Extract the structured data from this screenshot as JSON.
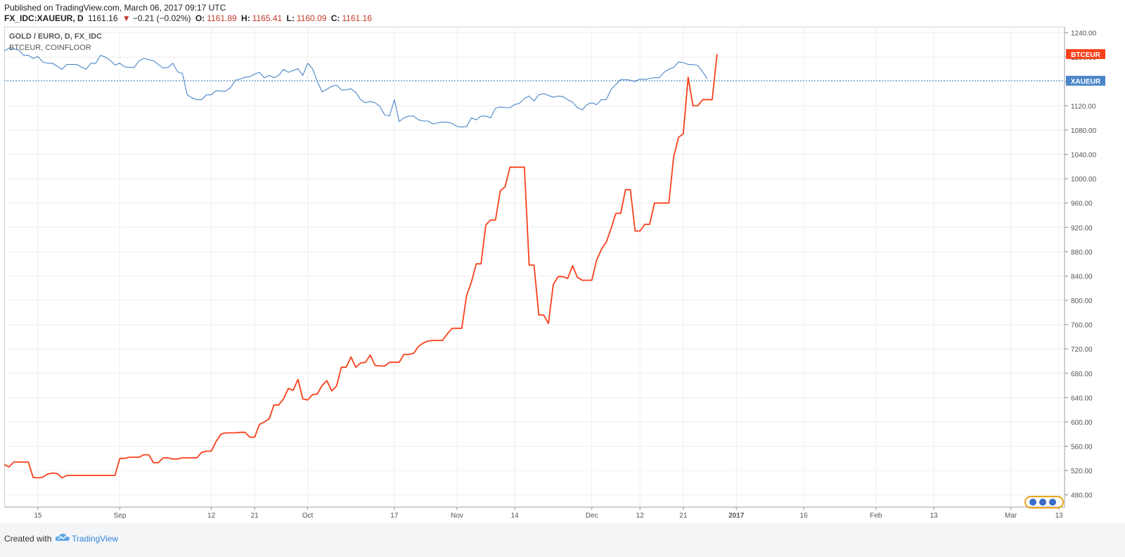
{
  "header": {
    "published": "Published on TradingView.com, March 06, 2017 09:17 UTC",
    "symbol": "FX_IDC:XAUEUR, D",
    "last": "1161.16",
    "change": "−0.21 (−0.02%)",
    "o_label": "O:",
    "o_value": "1161.89",
    "h_label": "H:",
    "h_value": "1165.41",
    "l_label": "L:",
    "l_value": "1160.09",
    "c_label": "C:",
    "c_value": "1161.16"
  },
  "legend": {
    "main": "GOLD / EURO, D, FX_IDC",
    "compare": "BTCEUR, COINFLOOR"
  },
  "footer": {
    "created_with": "Created with",
    "brand": "TradingView"
  },
  "colors": {
    "xaueur": "#4a86c8",
    "btceur": "#f7401b",
    "grid": "#eeeeee",
    "axis": "#555555"
  },
  "chart_data": {
    "type": "line",
    "ylim": [
      460,
      1250
    ],
    "yticks": [
      480,
      520,
      560,
      600,
      640,
      680,
      720,
      760,
      800,
      840,
      880,
      920,
      960,
      1000,
      1040,
      1080,
      1120,
      1160,
      1200,
      1240
    ],
    "x_tick_labels": [
      {
        "label": "15",
        "x": 7
      },
      {
        "label": "Sep",
        "x": 24
      },
      {
        "label": "12",
        "x": 43
      },
      {
        "label": "21",
        "x": 52
      },
      {
        "label": "Oct",
        "x": 63
      },
      {
        "label": "17",
        "x": 81
      },
      {
        "label": "Nov",
        "x": 94
      },
      {
        "label": "14",
        "x": 106
      },
      {
        "label": "Dec",
        "x": 122
      },
      {
        "label": "12",
        "x": 132
      },
      {
        "label": "21",
        "x": 141
      },
      {
        "label": "2017",
        "x": 152
      },
      {
        "label": "16",
        "x": 166
      },
      {
        "label": "Feb",
        "x": 181
      },
      {
        "label": "13",
        "x": 193
      },
      {
        "label": "Mar",
        "x": 209
      },
      {
        "label": "13",
        "x": 219
      }
    ],
    "series": [
      {
        "name": "XAUEUR",
        "color": "#4a86c8",
        "last": 1161.16,
        "points": [
          [
            0,
            1210
          ],
          [
            1,
            1215
          ],
          [
            3,
            1212
          ],
          [
            4,
            1203
          ],
          [
            5,
            1203
          ],
          [
            6,
            1198
          ],
          [
            7,
            1201
          ],
          [
            8,
            1192
          ],
          [
            9,
            1190
          ],
          [
            10,
            1190
          ],
          [
            12,
            1180
          ],
          [
            13,
            1188
          ],
          [
            14,
            1188
          ],
          [
            15,
            1188
          ],
          [
            16,
            1184
          ],
          [
            17,
            1180
          ],
          [
            18,
            1190
          ],
          [
            19,
            1190
          ],
          [
            20,
            1203
          ],
          [
            21,
            1200
          ],
          [
            22,
            1195
          ],
          [
            23,
            1187
          ],
          [
            24,
            1190
          ],
          [
            25,
            1184
          ],
          [
            26,
            1183
          ],
          [
            27,
            1183
          ],
          [
            28,
            1194
          ],
          [
            29,
            1198
          ],
          [
            30,
            1196
          ],
          [
            31,
            1194
          ],
          [
            32,
            1188
          ],
          [
            33,
            1182
          ],
          [
            34,
            1183
          ],
          [
            35,
            1190
          ],
          [
            36,
            1176
          ],
          [
            37,
            1173
          ],
          [
            38,
            1138
          ],
          [
            39,
            1133
          ],
          [
            40,
            1130
          ],
          [
            41,
            1130
          ],
          [
            42,
            1138
          ],
          [
            43,
            1138
          ],
          [
            44,
            1145
          ],
          [
            45,
            1144
          ],
          [
            46,
            1144
          ],
          [
            47,
            1150
          ],
          [
            48,
            1162
          ],
          [
            49,
            1164
          ],
          [
            50,
            1167
          ],
          [
            51,
            1168
          ],
          [
            52,
            1172
          ],
          [
            53,
            1175
          ],
          [
            54,
            1166
          ],
          [
            55,
            1170
          ],
          [
            56,
            1166
          ],
          [
            57,
            1170
          ],
          [
            58,
            1180
          ],
          [
            59,
            1175
          ],
          [
            60,
            1178
          ],
          [
            61,
            1181
          ],
          [
            62,
            1170
          ],
          [
            63,
            1190
          ],
          [
            64,
            1181
          ],
          [
            65,
            1160
          ],
          [
            66,
            1143
          ],
          [
            67,
            1147
          ],
          [
            68,
            1152
          ],
          [
            69,
            1154
          ],
          [
            70,
            1146
          ],
          [
            71,
            1146
          ],
          [
            72,
            1148
          ],
          [
            73,
            1142
          ],
          [
            74,
            1130
          ],
          [
            75,
            1125
          ],
          [
            76,
            1127
          ],
          [
            77,
            1125
          ],
          [
            78,
            1119
          ],
          [
            79,
            1105
          ],
          [
            80,
            1103
          ],
          [
            81,
            1130
          ],
          [
            82,
            1094
          ],
          [
            83,
            1100
          ],
          [
            84,
            1103
          ],
          [
            85,
            1103
          ],
          [
            86,
            1097
          ],
          [
            87,
            1095
          ],
          [
            88,
            1095
          ],
          [
            89,
            1090
          ],
          [
            90,
            1092
          ],
          [
            91,
            1093
          ],
          [
            92,
            1093
          ],
          [
            93,
            1091
          ],
          [
            94,
            1086
          ],
          [
            95,
            1085
          ],
          [
            96,
            1086
          ],
          [
            97,
            1100
          ],
          [
            98,
            1097
          ],
          [
            99,
            1103
          ],
          [
            100,
            1103
          ],
          [
            101,
            1100
          ],
          [
            102,
            1116
          ],
          [
            103,
            1118
          ],
          [
            104,
            1117
          ],
          [
            105,
            1117
          ],
          [
            106,
            1122
          ],
          [
            107,
            1124
          ],
          [
            108,
            1132
          ],
          [
            109,
            1136
          ],
          [
            110,
            1128
          ],
          [
            111,
            1138
          ],
          [
            112,
            1140
          ],
          [
            113,
            1137
          ],
          [
            114,
            1134
          ],
          [
            115,
            1136
          ],
          [
            116,
            1135
          ],
          [
            117,
            1130
          ],
          [
            118,
            1126
          ],
          [
            119,
            1117
          ],
          [
            120,
            1113
          ],
          [
            121,
            1122
          ],
          [
            122,
            1125
          ],
          [
            123,
            1122
          ],
          [
            124,
            1130
          ],
          [
            125,
            1130
          ],
          [
            126,
            1147
          ],
          [
            127,
            1155
          ],
          [
            128,
            1163
          ],
          [
            129,
            1163
          ],
          [
            130,
            1162
          ],
          [
            131,
            1160
          ],
          [
            132,
            1164
          ],
          [
            133,
            1163
          ],
          [
            134,
            1165
          ],
          [
            135,
            1166
          ],
          [
            136,
            1166
          ],
          [
            137,
            1175
          ],
          [
            138,
            1180
          ],
          [
            139,
            1183
          ],
          [
            140,
            1192
          ],
          [
            141,
            1191
          ],
          [
            142,
            1188
          ],
          [
            143,
            1188
          ],
          [
            144,
            1186
          ],
          [
            145,
            1176
          ],
          [
            146,
            1164
          ]
        ]
      },
      {
        "name": "BTCEUR",
        "color": "#f7401b",
        "last": 1205,
        "points": [
          [
            0,
            530
          ],
          [
            1,
            526
          ],
          [
            2,
            534
          ],
          [
            3,
            534
          ],
          [
            4,
            534
          ],
          [
            5,
            534
          ],
          [
            6,
            509
          ],
          [
            7,
            508
          ],
          [
            8,
            509
          ],
          [
            9,
            514
          ],
          [
            10,
            516
          ],
          [
            11,
            515
          ],
          [
            12,
            508
          ],
          [
            13,
            512
          ],
          [
            14,
            512
          ],
          [
            15,
            512
          ],
          [
            16,
            512
          ],
          [
            17,
            512
          ],
          [
            18,
            512
          ],
          [
            19,
            512
          ],
          [
            20,
            512
          ],
          [
            21,
            512
          ],
          [
            22,
            512
          ],
          [
            23,
            512
          ],
          [
            24,
            540
          ],
          [
            25,
            540
          ],
          [
            26,
            542
          ],
          [
            27,
            542
          ],
          [
            28,
            542
          ],
          [
            29,
            546
          ],
          [
            30,
            546
          ],
          [
            31,
            533
          ],
          [
            32,
            533
          ],
          [
            33,
            541
          ],
          [
            34,
            541
          ],
          [
            35,
            539
          ],
          [
            36,
            539
          ],
          [
            37,
            541
          ],
          [
            38,
            541
          ],
          [
            39,
            541
          ],
          [
            40,
            541
          ],
          [
            41,
            550
          ],
          [
            42,
            552
          ],
          [
            43,
            552
          ],
          [
            44,
            568
          ],
          [
            45,
            580
          ],
          [
            46,
            582
          ],
          [
            47,
            582
          ],
          [
            48,
            582
          ],
          [
            49,
            583
          ],
          [
            50,
            583
          ],
          [
            51,
            575
          ],
          [
            52,
            575
          ],
          [
            53,
            596
          ],
          [
            54,
            600
          ],
          [
            55,
            605
          ],
          [
            56,
            628
          ],
          [
            57,
            628
          ],
          [
            58,
            638
          ],
          [
            59,
            655
          ],
          [
            60,
            652
          ],
          [
            61,
            670
          ],
          [
            62,
            638
          ],
          [
            63,
            636
          ],
          [
            64,
            645
          ],
          [
            65,
            646
          ],
          [
            66,
            660
          ],
          [
            67,
            668
          ],
          [
            68,
            651
          ],
          [
            69,
            659
          ],
          [
            70,
            690
          ],
          [
            71,
            690
          ],
          [
            72,
            707
          ],
          [
            73,
            690
          ],
          [
            74,
            697
          ],
          [
            75,
            698
          ],
          [
            76,
            710
          ],
          [
            77,
            693
          ],
          [
            78,
            692
          ],
          [
            79,
            692
          ],
          [
            80,
            698
          ],
          [
            81,
            698
          ],
          [
            82,
            698
          ],
          [
            83,
            711
          ],
          [
            84,
            711
          ],
          [
            85,
            713
          ],
          [
            86,
            724
          ],
          [
            87,
            730
          ],
          [
            88,
            733
          ],
          [
            89,
            734
          ],
          [
            90,
            734
          ],
          [
            91,
            734
          ],
          [
            92,
            745
          ],
          [
            93,
            754
          ],
          [
            94,
            754
          ],
          [
            95,
            754
          ],
          [
            96,
            808
          ],
          [
            97,
            830
          ],
          [
            98,
            860
          ],
          [
            99,
            860
          ],
          [
            100,
            924
          ],
          [
            101,
            932
          ],
          [
            102,
            932
          ],
          [
            103,
            980
          ],
          [
            104,
            987
          ],
          [
            105,
            1019
          ],
          [
            106,
            1019
          ],
          [
            107,
            1019
          ],
          [
            108,
            1019
          ],
          [
            109,
            858
          ],
          [
            110,
            858
          ],
          [
            111,
            776
          ],
          [
            112,
            776
          ],
          [
            113,
            762
          ],
          [
            114,
            826
          ],
          [
            115,
            839
          ],
          [
            116,
            839
          ],
          [
            117,
            836
          ],
          [
            118,
            857
          ],
          [
            119,
            838
          ],
          [
            120,
            833
          ],
          [
            121,
            833
          ],
          [
            122,
            833
          ],
          [
            123,
            866
          ],
          [
            124,
            884
          ],
          [
            125,
            896
          ],
          [
            126,
            918
          ],
          [
            127,
            943
          ],
          [
            128,
            943
          ],
          [
            129,
            982
          ],
          [
            130,
            982
          ],
          [
            131,
            914
          ],
          [
            132,
            914
          ],
          [
            133,
            925
          ],
          [
            134,
            925
          ],
          [
            135,
            960
          ],
          [
            136,
            960
          ],
          [
            137,
            960
          ],
          [
            138,
            960
          ],
          [
            139,
            1036
          ],
          [
            140,
            1068
          ],
          [
            141,
            1074
          ],
          [
            142,
            1167
          ],
          [
            143,
            1120
          ],
          [
            144,
            1120
          ],
          [
            145,
            1130
          ],
          [
            146,
            1130
          ],
          [
            147,
            1130
          ],
          [
            148,
            1205
          ]
        ]
      }
    ]
  }
}
